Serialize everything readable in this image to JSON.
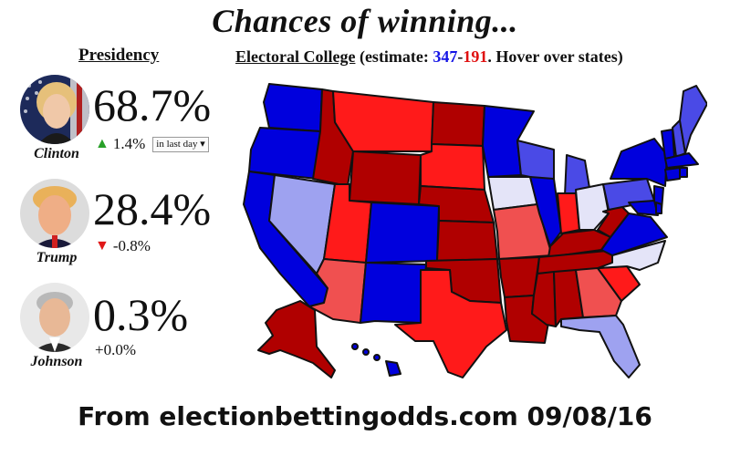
{
  "header": {
    "title": "Chances of winning..."
  },
  "presidency": {
    "label": "Presidency"
  },
  "electoral": {
    "label": "Electoral College",
    "pre": " (estimate: ",
    "dem_votes": "347",
    "dash": "-",
    "rep_votes": "191",
    "post": ". Hover over states)"
  },
  "candidates": [
    {
      "name": "Clinton",
      "percent": "68.7%",
      "change": "1.4%",
      "direction": "up-arrow-icon",
      "period": "in last day"
    },
    {
      "name": "Trump",
      "percent": "28.4%",
      "change": "-0.8%",
      "direction": "down-arrow-icon"
    },
    {
      "name": "Johnson",
      "percent": "0.3%",
      "change": "+0.0%"
    }
  ],
  "colors": {
    "dem_strong": "#0000dd",
    "dem_lean": "#4a4ae6",
    "dem_tilt": "#9ea2f0",
    "rep_strong": "#b00000",
    "rep_lean": "#ff1a1a",
    "rep_tilt": "#f05050",
    "tossup": "#e4e4f8"
  },
  "footer": {
    "text": "From electionbettingodds.com 09/08/16"
  }
}
